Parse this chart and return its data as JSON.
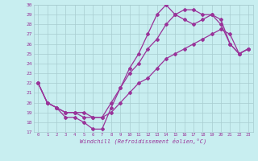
{
  "xlabel": "Windchill (Refroidissement éolien,°C)",
  "bg_color": "#c8eef0",
  "grid_color": "#a8ccd0",
  "line_color": "#993399",
  "xlim": [
    -0.5,
    23.5
  ],
  "ylim": [
    17,
    30
  ],
  "xticks": [
    0,
    1,
    2,
    3,
    4,
    5,
    6,
    7,
    8,
    9,
    10,
    11,
    12,
    13,
    14,
    15,
    16,
    17,
    18,
    19,
    20,
    21,
    22,
    23
  ],
  "yticks": [
    17,
    18,
    19,
    20,
    21,
    22,
    23,
    24,
    25,
    26,
    27,
    28,
    29,
    30
  ],
  "series1_x": [
    0,
    1,
    2,
    3,
    4,
    5,
    6,
    7,
    8,
    9,
    10,
    11,
    12,
    13,
    14,
    15,
    16,
    17,
    18,
    19,
    20,
    21,
    22,
    23
  ],
  "series1_y": [
    22,
    20,
    19.5,
    18.5,
    18.5,
    18,
    17.3,
    17.3,
    19.5,
    21.5,
    23.5,
    25,
    27,
    29,
    30,
    29,
    28.5,
    28,
    28.5,
    29,
    28,
    26,
    25,
    25.5
  ],
  "series2_x": [
    0,
    1,
    2,
    3,
    4,
    5,
    6,
    7,
    8,
    9,
    10,
    11,
    12,
    13,
    14,
    15,
    16,
    17,
    18,
    19,
    20,
    21,
    22,
    23
  ],
  "series2_y": [
    22,
    20,
    19.5,
    19,
    19,
    19,
    18.5,
    18.5,
    20,
    21.5,
    23,
    24,
    25.5,
    26.5,
    28,
    29,
    29.5,
    29.5,
    29,
    29,
    28.5,
    26,
    25,
    25.5
  ],
  "series3_x": [
    0,
    1,
    2,
    3,
    4,
    5,
    6,
    7,
    8,
    9,
    10,
    11,
    12,
    13,
    14,
    15,
    16,
    17,
    18,
    19,
    20,
    21,
    22,
    23
  ],
  "series3_y": [
    22,
    20,
    19.5,
    19,
    19,
    18.5,
    18.5,
    18.5,
    19,
    20,
    21,
    22,
    22.5,
    23.5,
    24.5,
    25,
    25.5,
    26,
    26.5,
    27,
    27.5,
    27,
    25,
    25.5
  ],
  "marker": "D",
  "markersize": 2.0,
  "linewidth": 0.9
}
